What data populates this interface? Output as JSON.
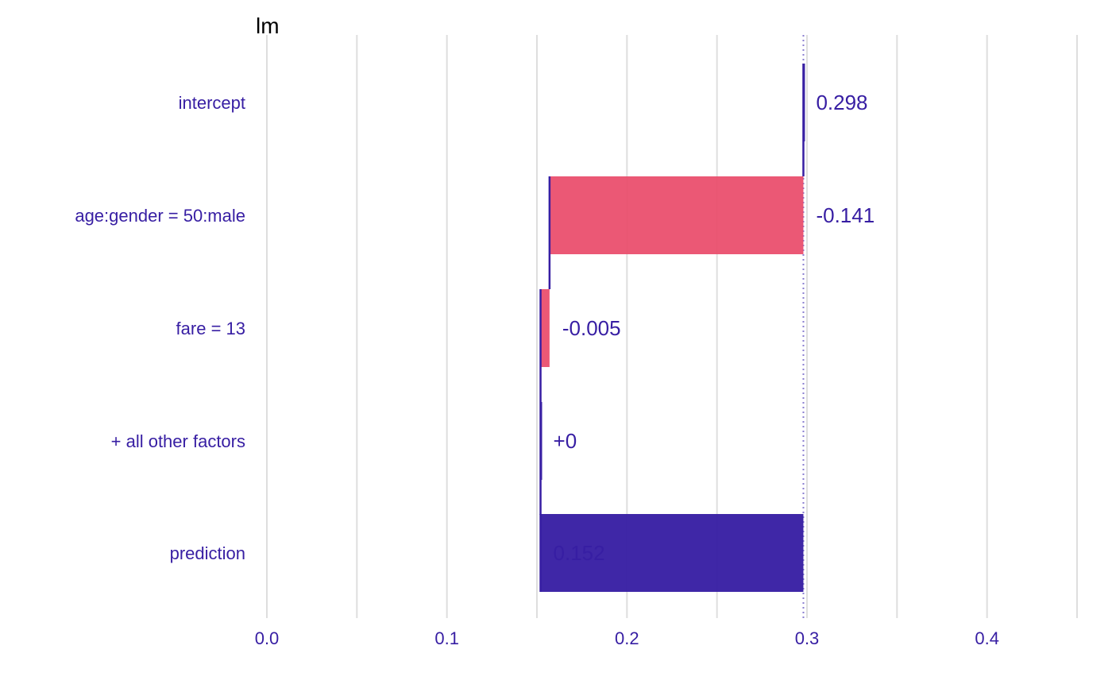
{
  "colors": {
    "text": "#371EA3",
    "positive": "#371EA3",
    "negative": "#E94A69",
    "grid": "#DEDEDE",
    "baseline": "#8B7FD1"
  },
  "chart_data": {
    "type": "bar",
    "subtype": "break-down",
    "title": "lm",
    "xlim": [
      -0.0005,
      0.4515
    ],
    "x_ticks": [
      0.0,
      0.1,
      0.2,
      0.3,
      0.4
    ],
    "x_tick_labels": [
      "0.0",
      "0.1",
      "0.2",
      "0.3",
      "0.4"
    ],
    "minor_grid": [
      0.05,
      0.15,
      0.25,
      0.35,
      0.45
    ],
    "grid": true,
    "baseline": 0.298,
    "rows": [
      {
        "label": "intercept",
        "start": 0.298,
        "end": 0.298,
        "value": 0.298,
        "value_label": "0.298",
        "kind": "intercept"
      },
      {
        "label": "age:gender = 50:male",
        "start": 0.298,
        "end": 0.157,
        "value": -0.141,
        "value_label": "-0.141",
        "kind": "negative"
      },
      {
        "label": "fare = 13",
        "start": 0.157,
        "end": 0.152,
        "value": -0.005,
        "value_label": "-0.005",
        "kind": "negative"
      },
      {
        "label": "+ all other factors",
        "start": 0.152,
        "end": 0.152,
        "value": 0.0,
        "value_label": "+0",
        "kind": "neutral"
      },
      {
        "label": "prediction",
        "start": 0.298,
        "end": 0.152,
        "value": 0.152,
        "value_label": "0.152",
        "kind": "prediction"
      }
    ]
  }
}
